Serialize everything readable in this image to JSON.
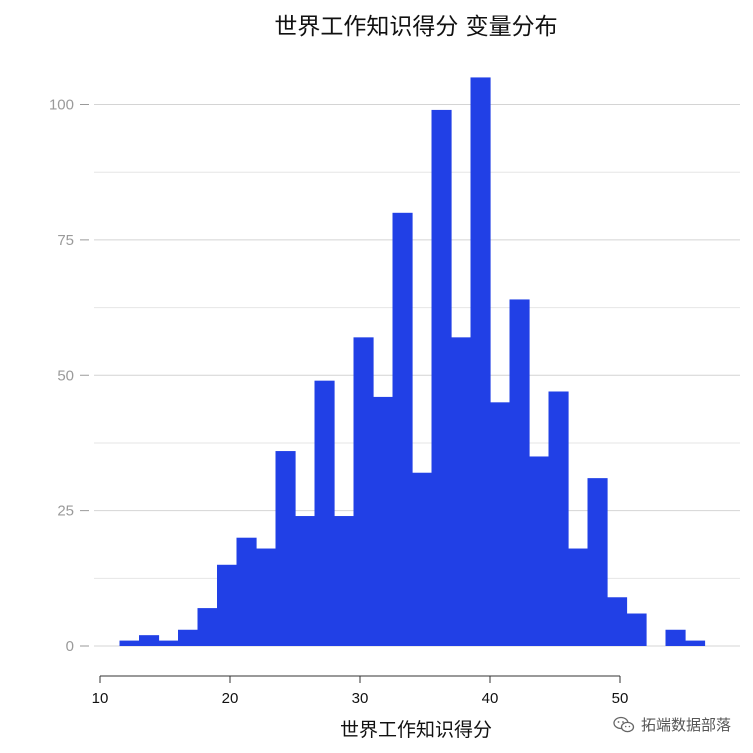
{
  "chart_data": {
    "type": "bar",
    "title": "世界工作知识得分 变量分布",
    "xlabel": "世界工作知识得分",
    "ylabel": "",
    "xlim": [
      10,
      57
    ],
    "ylim": [
      0,
      105
    ],
    "x_ticks": [
      10,
      20,
      30,
      40,
      50
    ],
    "y_ticks": [
      0,
      25,
      50,
      75,
      100
    ],
    "bin_start": 11.5,
    "bin_width": 1.5,
    "values": [
      1,
      2,
      1,
      3,
      7,
      15,
      20,
      18,
      36,
      24,
      49,
      24,
      57,
      46,
      80,
      32,
      99,
      57,
      105,
      45,
      64,
      35,
      47,
      18,
      31,
      9,
      6,
      0,
      3,
      1
    ],
    "bar_color": "#2140e6",
    "grid": true
  },
  "watermark": {
    "text": "拓端数据部落",
    "icon": "wechat-icon"
  }
}
